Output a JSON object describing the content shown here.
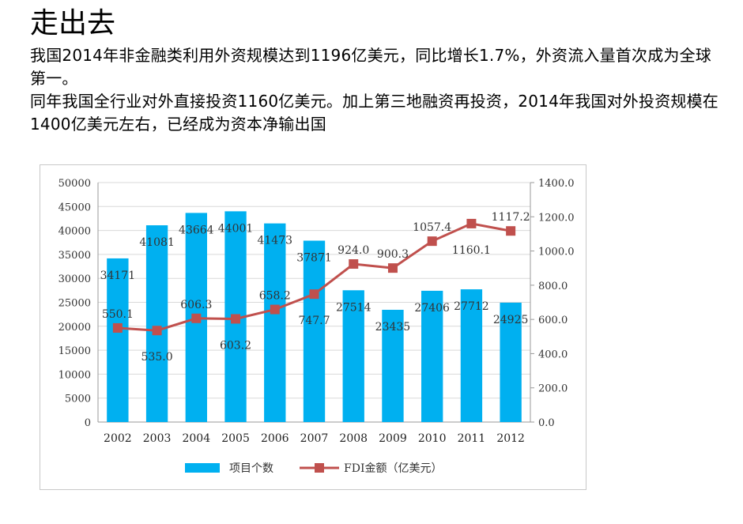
{
  "heading": "走出去",
  "paragraphs": [
    "我国2014年非金融类利用外资规模达到1196亿美元，同比增长1.7%，外资流入量首次成为全球第一。",
    "同年我国全行业对外直接投资1160亿美元。加上第三地融资再投资，2014年我国对外投资规模在1400亿美元左右，已经成为资本净输出国"
  ],
  "chart_data": {
    "type": "bar+line",
    "categories": [
      "2002",
      "2003",
      "2004",
      "2005",
      "2006",
      "2007",
      "2008",
      "2009",
      "2010",
      "2011",
      "2012"
    ],
    "series": [
      {
        "name": "项目个数",
        "type": "bar",
        "axis": "left",
        "color": "#00b0f0",
        "values": [
          34171,
          41081,
          43664,
          44001,
          41473,
          37871,
          27514,
          23435,
          27406,
          27712,
          24925
        ],
        "labels": [
          "34171",
          "41081",
          "43664",
          "44001",
          "41473",
          "37871",
          "27514",
          "23435",
          "27406",
          "27712",
          "24925"
        ]
      },
      {
        "name": "FDI金额（亿美元）",
        "type": "line",
        "axis": "right",
        "color": "#c0504d",
        "values": [
          550.1,
          535.0,
          606.3,
          603.2,
          658.2,
          747.7,
          924.0,
          900.3,
          1057.4,
          1160.1,
          1117.2
        ],
        "labels": [
          "550.1",
          "535.0",
          "606.3",
          "603.2",
          "658.2",
          "747.7",
          "924.0",
          "900.3",
          "1057.4",
          "1160.1",
          "1117.2"
        ]
      }
    ],
    "left_axis": {
      "ylim": [
        0,
        50000
      ],
      "ticks": [
        "0",
        "5000",
        "10000",
        "15000",
        "20000",
        "25000",
        "30000",
        "35000",
        "40000",
        "45000",
        "50000"
      ]
    },
    "right_axis": {
      "ylim": [
        0,
        1400
      ],
      "ticks": [
        "0.0",
        "200.0",
        "400.0",
        "600.0",
        "800.0",
        "1000.0",
        "1200.0",
        "1400.0"
      ]
    },
    "grid": true,
    "legend": "bottom"
  }
}
